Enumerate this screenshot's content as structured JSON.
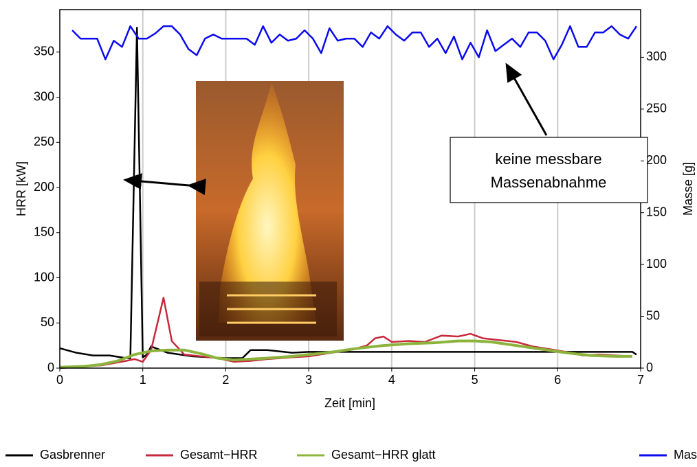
{
  "chart_data": {
    "type": "line",
    "x_label": "Zeit [min]",
    "y_label": "HRR [kW]",
    "y2_label": "Masse [g]",
    "xlim": [
      0,
      7
    ],
    "xticks": [
      0,
      1,
      2,
      3,
      4,
      5,
      6,
      7
    ],
    "ylim": [
      0,
      397
    ],
    "yticks": [
      0,
      50,
      100,
      150,
      200,
      250,
      300,
      350
    ],
    "y2lim": [
      0,
      346
    ],
    "y2ticks": [
      0,
      50,
      100,
      150,
      200,
      250,
      300
    ],
    "grid": "x",
    "annotation": [
      "keine messbare",
      "Massenabnahme"
    ],
    "series": [
      {
        "name": "Gasbrenner",
        "color": "#000000",
        "x": [
          0,
          0.2,
          0.4,
          0.6,
          0.8,
          0.85,
          0.93,
          1.0,
          1.05,
          1.1,
          1.3,
          1.6,
          2.0,
          2.2,
          2.3,
          2.5,
          2.8,
          3.0,
          4.0,
          5.0,
          6.0,
          6.9,
          6.95
        ],
        "values": [
          22,
          17,
          14,
          14,
          11,
          11,
          377,
          12,
          15,
          24,
          17,
          13,
          11,
          11,
          20,
          20,
          17,
          18,
          18,
          18,
          18,
          18,
          15
        ]
      },
      {
        "name": "Gesamt−HRR",
        "color": "#c8283c",
        "x": [
          0,
          0.5,
          0.8,
          0.9,
          1.0,
          1.1,
          1.25,
          1.35,
          1.5,
          1.7,
          1.9,
          2.1,
          2.3,
          2.5,
          2.8,
          3.0,
          3.2,
          3.5,
          3.7,
          3.8,
          3.9,
          4.0,
          4.2,
          4.4,
          4.6,
          4.8,
          4.95,
          5.1,
          5.3,
          5.5,
          5.7,
          5.9,
          6.1,
          6.3,
          6.5,
          6.7,
          6.9
        ],
        "values": [
          0,
          3,
          8,
          10,
          7,
          20,
          78,
          30,
          15,
          13,
          11,
          7,
          8,
          10,
          12,
          13,
          16,
          20,
          25,
          33,
          35,
          29,
          30,
          29,
          36,
          35,
          38,
          33,
          31,
          29,
          24,
          21,
          18,
          14,
          15,
          14,
          13
        ]
      },
      {
        "name": "Gesamt−HRR glatt",
        "color": "#8cb43c",
        "x": [
          0,
          0.3,
          0.5,
          0.7,
          0.9,
          1.1,
          1.3,
          1.5,
          1.7,
          1.9,
          2.1,
          2.3,
          2.5,
          2.8,
          3.0,
          3.3,
          3.6,
          3.9,
          4.2,
          4.5,
          4.8,
          5.0,
          5.2,
          5.5,
          5.8,
          6.1,
          6.4,
          6.7,
          6.9
        ],
        "values": [
          1,
          2,
          4,
          8,
          15,
          19,
          20,
          20,
          16,
          11,
          9,
          10,
          11,
          13,
          15,
          18,
          22,
          25,
          27,
          28,
          30,
          30,
          29,
          25,
          21,
          17,
          14,
          13,
          13
        ]
      },
      {
        "name": "Masse",
        "color": "#0a0aee",
        "axis": "y2",
        "x": [
          0.15,
          0.25,
          0.35,
          0.45,
          0.55,
          0.65,
          0.75,
          0.85,
          0.95,
          1.05,
          1.15,
          1.25,
          1.35,
          1.45,
          1.55,
          1.65,
          1.75,
          1.85,
          1.95,
          2.05,
          2.15,
          2.25,
          2.35,
          2.45,
          2.55,
          2.65,
          2.75,
          2.85,
          2.95,
          3.05,
          3.15,
          3.25,
          3.35,
          3.45,
          3.55,
          3.65,
          3.75,
          3.85,
          3.95,
          4.05,
          4.15,
          4.25,
          4.35,
          4.45,
          4.55,
          4.65,
          4.75,
          4.85,
          4.95,
          5.05,
          5.15,
          5.25,
          5.35,
          5.45,
          5.55,
          5.65,
          5.75,
          5.85,
          5.95,
          6.05,
          6.15,
          6.25,
          6.35,
          6.45,
          6.55,
          6.65,
          6.75,
          6.85,
          6.95
        ],
        "values": [
          326,
          318,
          318,
          318,
          298,
          316,
          310,
          330,
          318,
          318,
          323,
          330,
          330,
          322,
          308,
          302,
          318,
          322,
          318,
          318,
          318,
          318,
          312,
          330,
          314,
          322,
          316,
          318,
          326,
          318,
          304,
          328,
          316,
          318,
          318,
          310,
          324,
          318,
          330,
          322,
          316,
          324,
          324,
          310,
          318,
          304,
          320,
          298,
          314,
          300,
          326,
          306,
          312,
          318,
          310,
          324,
          324,
          316,
          298,
          312,
          330,
          310,
          310,
          324,
          324,
          330,
          322,
          318,
          330
        ]
      }
    ]
  }
}
